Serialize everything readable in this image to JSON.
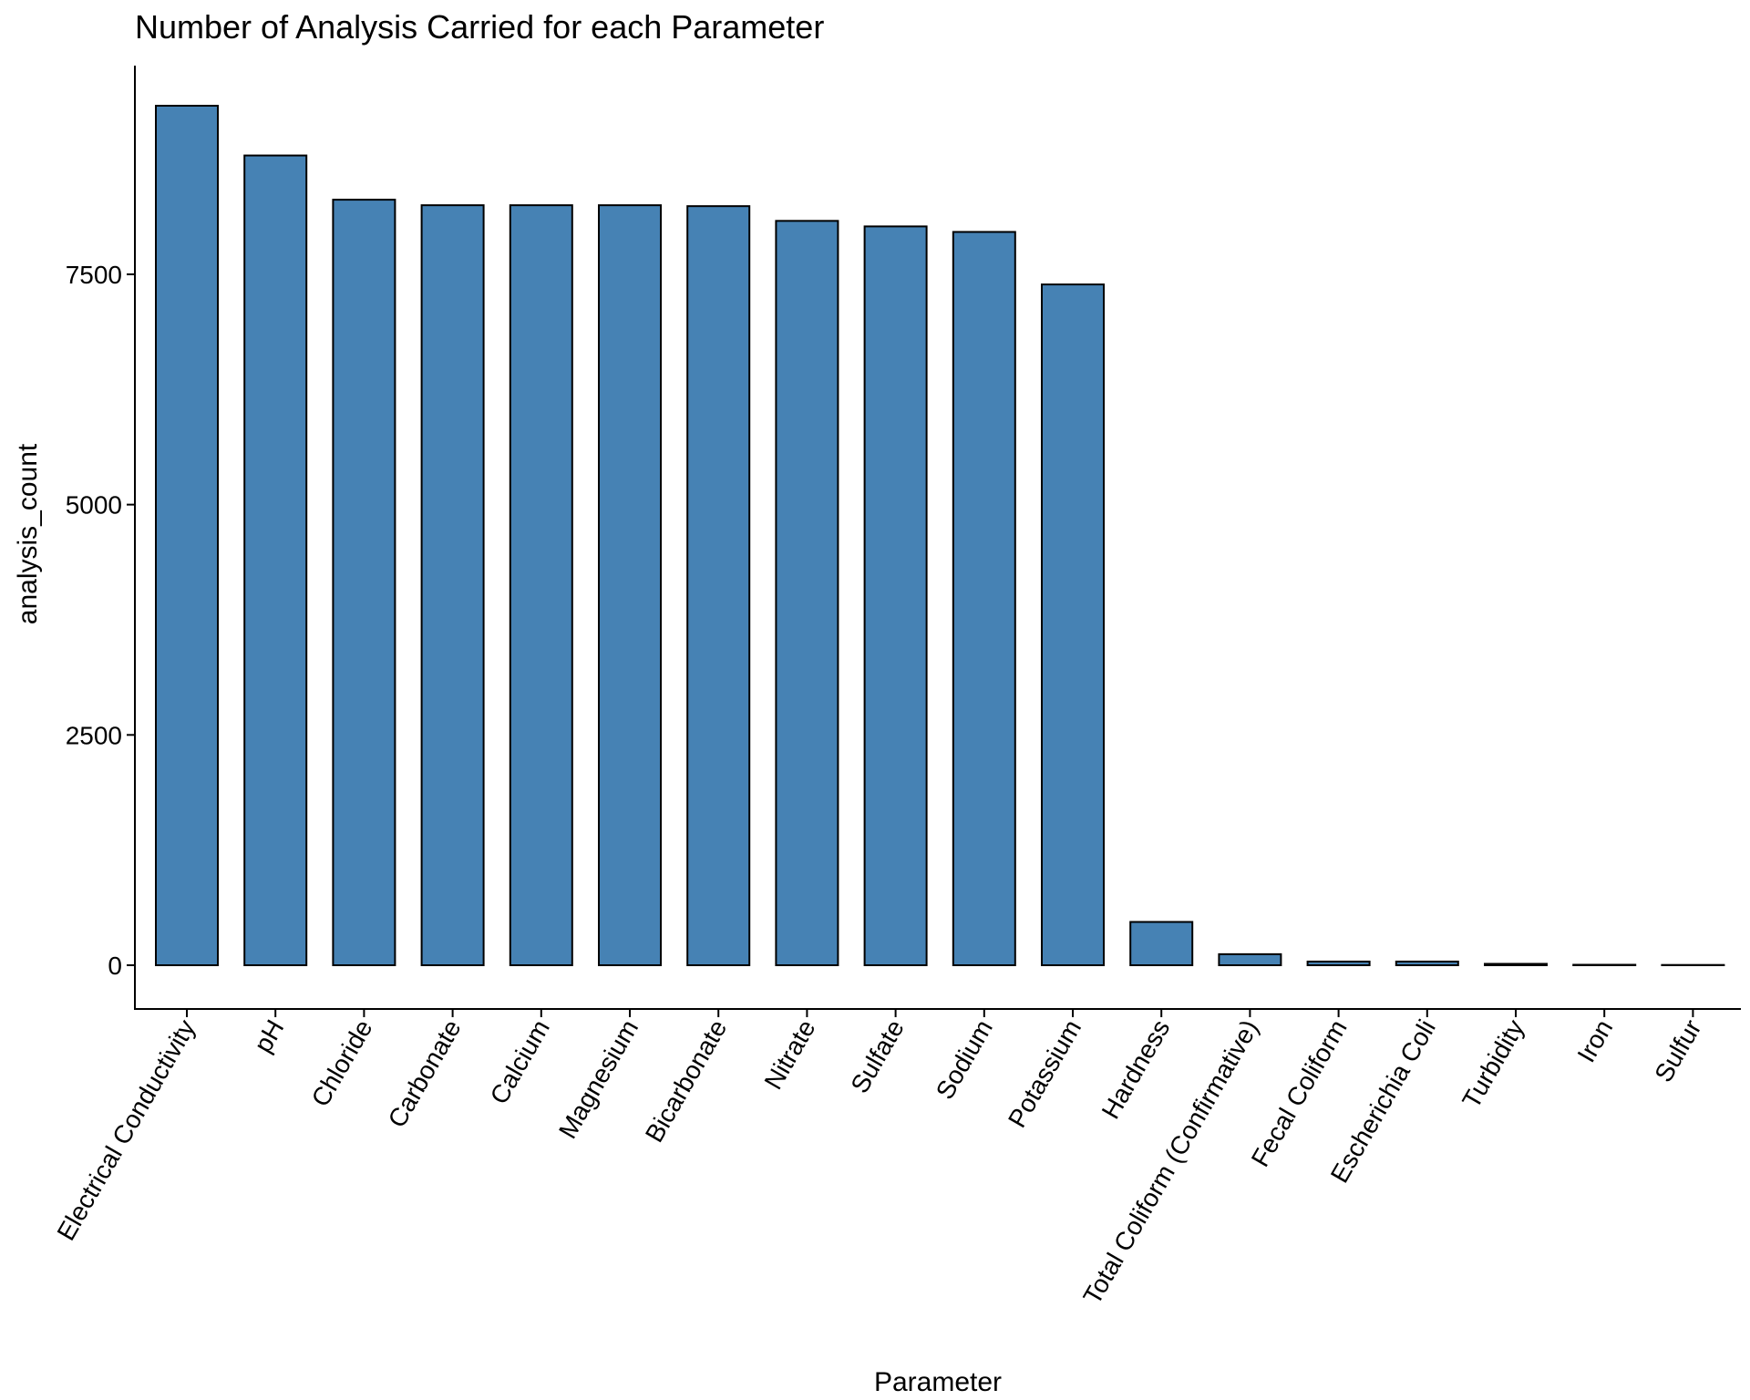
{
  "chart_data": {
    "type": "bar",
    "title": "Number of Analysis Carried for each Parameter",
    "xlabel": "Parameter",
    "ylabel": "analysis_count",
    "categories": [
      "Electrical Conductivity",
      "pH",
      "Chloride",
      "Carbonate",
      "Calcium",
      "Magnesium",
      "Bicarbonate",
      "Nitrate",
      "Sulfate",
      "Sodium",
      "Potassium",
      "Hardness",
      "Total Coliform (Confirmative)",
      "Fecal Coliform",
      "Escherichia Coli",
      "Turbidity",
      "Iron",
      "Sulfur"
    ],
    "values": [
      9330,
      8790,
      8310,
      8250,
      8250,
      8250,
      8240,
      8080,
      8020,
      7960,
      7390,
      470,
      120,
      40,
      40,
      15,
      5,
      3
    ],
    "ylim": [
      0,
      9330
    ],
    "yticks": [
      0,
      2500,
      5000,
      7500
    ],
    "ytick_labels": [
      "0",
      "2500",
      "5000",
      "7500"
    ],
    "grid": false,
    "colors": {
      "bar_fill": "#4682B4",
      "bar_stroke": "#000000"
    }
  }
}
